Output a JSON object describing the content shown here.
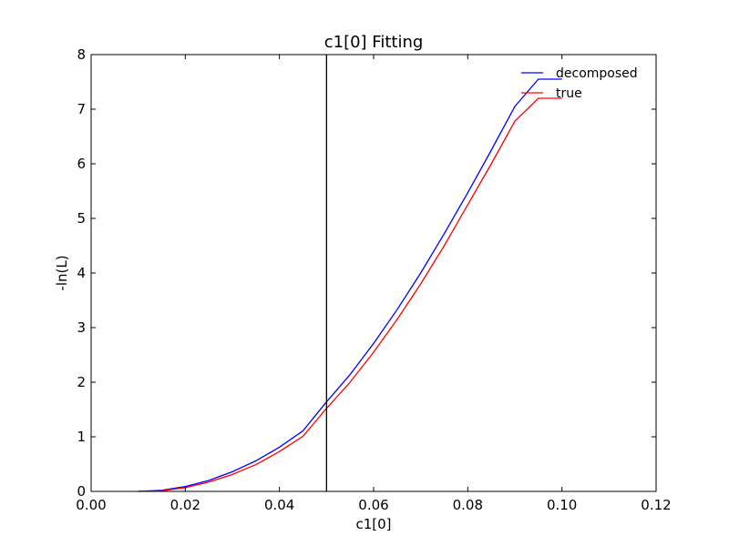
{
  "chart_data": {
    "type": "line",
    "title": "c1[0] Fitting",
    "xlabel": "c1[0]",
    "ylabel": "-ln(L)",
    "xlim": [
      0.0,
      0.12
    ],
    "ylim": [
      0,
      8
    ],
    "xticks": [
      "0.00",
      "0.02",
      "0.04",
      "0.06",
      "0.08",
      "0.10",
      "0.12"
    ],
    "yticks": [
      "0",
      "1",
      "2",
      "3",
      "4",
      "5",
      "6",
      "7",
      "8"
    ],
    "grid": false,
    "legend_position": "top-right",
    "vertical_line_x": 0.05,
    "series": [
      {
        "name": "decomposed",
        "color": "#0000ff",
        "x": [
          0.01,
          0.015,
          0.02,
          0.025,
          0.03,
          0.035,
          0.04,
          0.045,
          0.05,
          0.055,
          0.06,
          0.065,
          0.07,
          0.075,
          0.08,
          0.085,
          0.09,
          0.095,
          0.1
        ],
        "y": [
          0.0,
          0.02,
          0.09,
          0.2,
          0.36,
          0.56,
          0.81,
          1.11,
          1.64,
          2.14,
          2.71,
          3.33,
          4.0,
          4.72,
          5.47,
          6.25,
          7.05,
          7.55,
          7.55
        ]
      },
      {
        "name": "true",
        "color": "#ff0000",
        "x": [
          0.01,
          0.015,
          0.02,
          0.025,
          0.03,
          0.035,
          0.04,
          0.045,
          0.05,
          0.055,
          0.06,
          0.065,
          0.07,
          0.075,
          0.08,
          0.085,
          0.09,
          0.095,
          0.1
        ],
        "y": [
          0.0,
          0.01,
          0.07,
          0.17,
          0.31,
          0.49,
          0.73,
          1.01,
          1.52,
          2.0,
          2.55,
          3.15,
          3.8,
          4.5,
          5.25,
          6.0,
          6.78,
          7.2,
          7.2
        ]
      }
    ]
  }
}
